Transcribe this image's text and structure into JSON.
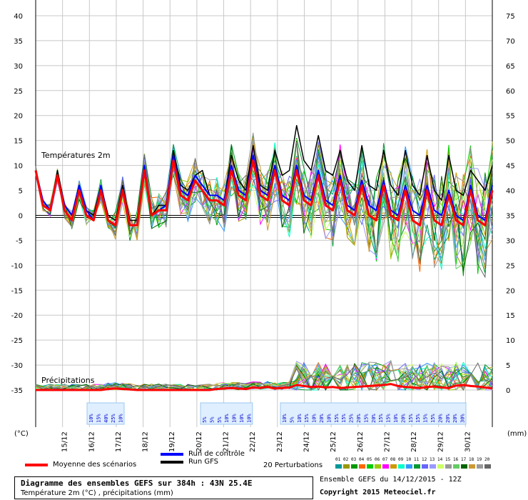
{
  "chart_data": {
    "type": "line",
    "title": "Diagramme des ensembles GEFS sur 384h : 43N 25.4E",
    "subtitle": "Température 2m (°C) , précipitations (mm)",
    "left_unit": "(°C)",
    "right_unit": "(mm)",
    "left_ticks": [
      40,
      35,
      30,
      25,
      20,
      15,
      10,
      5,
      0,
      -5,
      -10,
      -15,
      -20,
      -25,
      -30,
      -35
    ],
    "right_ticks": [
      75,
      70,
      65,
      60,
      55,
      50,
      45,
      40,
      35,
      30,
      25,
      20,
      15,
      10,
      5,
      0
    ],
    "ylim_temp": [
      -35,
      40
    ],
    "ylim_precip": [
      0,
      75
    ],
    "x_dates": [
      "15/12",
      "16/12",
      "17/12",
      "18/12",
      "19/12",
      "20/12",
      "21/12",
      "22/12",
      "23/12",
      "24/12",
      "25/12",
      "26/12",
      "27/12",
      "28/12",
      "29/12",
      "30/12"
    ],
    "temp_annotation": "Températures 2m",
    "precip_annotation": "Précipitations",
    "gfs_run_temp": [
      9,
      3,
      1,
      9,
      2,
      0,
      6,
      1,
      0,
      6,
      0,
      -1,
      6,
      -1,
      -1,
      10,
      0,
      2,
      2,
      13,
      6,
      5,
      8,
      9,
      4,
      4,
      3,
      12,
      7,
      5,
      14,
      6,
      5,
      13,
      8,
      9,
      18,
      11,
      9,
      16,
      9,
      8,
      13,
      7,
      5,
      14,
      6,
      5,
      13,
      6,
      4,
      13,
      6,
      4,
      12,
      5,
      3,
      12,
      5,
      4,
      9,
      7,
      5,
      10
    ],
    "mean_temp": [
      9,
      2,
      1,
      8,
      1,
      -1,
      5,
      0,
      -1,
      5,
      -1,
      -2,
      5,
      -2,
      -2,
      9,
      0,
      1,
      1,
      11,
      4,
      3,
      7,
      5,
      3,
      3,
      2,
      9,
      4,
      3,
      11,
      4,
      3,
      9,
      3,
      2,
      9,
      3,
      2,
      8,
      2,
      1,
      7,
      1,
      0,
      6,
      0,
      -1,
      6,
      0,
      -1,
      5,
      -1,
      -2,
      5,
      -1,
      -2,
      4,
      -1,
      -2,
      5,
      -1,
      -2,
      5
    ],
    "control_run_temp": [
      9,
      3,
      1,
      8,
      2,
      0,
      6,
      1,
      -1,
      6,
      -1,
      -2,
      5,
      -2,
      -2,
      10,
      0,
      1,
      2,
      12,
      5,
      4,
      8,
      6,
      4,
      4,
      3,
      10,
      5,
      4,
      12,
      5,
      4,
      10,
      4,
      3,
      10,
      4,
      3,
      9,
      3,
      2,
      8,
      2,
      1,
      7,
      2,
      1,
      7,
      1,
      0,
      6,
      1,
      0,
      6,
      1,
      0,
      5,
      0,
      -1,
      6,
      0,
      -1,
      6
    ],
    "precip_mean": [
      0,
      0,
      0,
      0,
      0,
      0,
      0,
      0,
      0,
      0,
      0.2,
      0.3,
      0.2,
      0.1,
      0,
      0,
      0,
      0,
      0,
      0,
      0,
      0,
      0,
      0,
      0,
      0.2,
      0.3,
      0.4,
      0.3,
      0.2,
      0.5,
      0.4,
      0.6,
      0.3,
      0.4,
      0.5,
      1,
      0.8,
      0.6,
      0.7,
      0.5,
      0.6,
      0.4,
      0.5,
      0.6,
      0.7,
      0.8,
      0.9,
      1,
      1.2,
      0.8,
      0.6,
      0.5,
      0.4,
      0.6,
      0.7,
      0.5,
      0.4,
      0.9,
      1,
      0.8,
      0.7,
      0.5,
      0.3
    ],
    "probability_groups": [
      {
        "labels": [
          "10%",
          "15%",
          "40%",
          "25%",
          "10%"
        ]
      },
      {
        "labels": [
          "5%",
          "5%",
          "5%",
          "10%",
          "10%",
          "10%",
          "10%"
        ]
      },
      {
        "labels": [
          "10%",
          "5%",
          "10%",
          "15%",
          "10%",
          "20%",
          "10%",
          "15%",
          "15%",
          "25%",
          "20%",
          "15%",
          "20%",
          "15%",
          "15%",
          "10%",
          "20%",
          "15%",
          "15%",
          "15%",
          "15%",
          "20%",
          "20%",
          "20%",
          "30%"
        ]
      }
    ],
    "legend": {
      "mean": "Moyenne des scénarios",
      "control": "Run de contrôle",
      "gfs": "Run GFS",
      "perturbations": "20 Perturbations",
      "perturbation_numbers": [
        "01",
        "02",
        "03",
        "04",
        "05",
        "06",
        "07",
        "08",
        "09",
        "10",
        "11",
        "12",
        "13",
        "14",
        "15",
        "16",
        "17",
        "18",
        "19",
        "20"
      ],
      "perturbation_colors": [
        "#009999",
        "#999900",
        "#009900",
        "#ff6600",
        "#00cc00",
        "#99cc00",
        "#ff00ff",
        "#cc9900",
        "#00ffcc",
        "#3399ff",
        "#009933",
        "#6666ff",
        "#9999ff",
        "#ccff66",
        "#999999",
        "#66cc66",
        "#006600",
        "#cc9933",
        "#999999",
        "#666666"
      ]
    },
    "colors": {
      "mean": "#ff0000",
      "control": "#0000ff",
      "gfs": "#000000"
    }
  },
  "info": {
    "ensemble": "Ensemble GEFS du 14/12/2015 - 12Z",
    "copyright": "Copyright 2015 Meteociel.fr"
  }
}
